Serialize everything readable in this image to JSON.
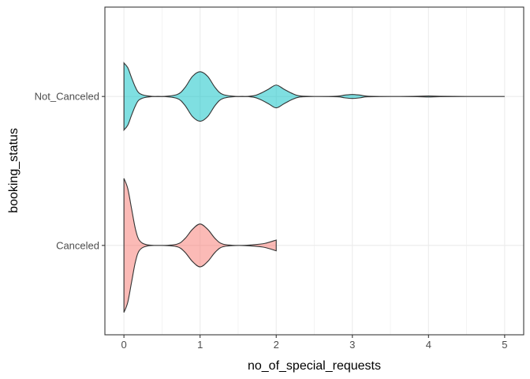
{
  "chart_data": {
    "type": "violin",
    "orientation": "horizontal",
    "xlabel": "no_of_special_requests",
    "ylabel": "booking_status",
    "xlim": [
      -0.25,
      5.25
    ],
    "x_ticks": [
      0,
      1,
      2,
      3,
      4,
      5
    ],
    "x_tick_labels": [
      "0",
      "1",
      "2",
      "3",
      "4",
      "5"
    ],
    "categories": [
      "Canceled",
      "Not_Canceled"
    ],
    "grid": true,
    "legend": "none",
    "series": [
      {
        "category": "Canceled",
        "color": "#F8766D",
        "x_range": [
          0,
          2
        ],
        "density": [
          [
            0,
            1.0
          ],
          [
            0.05,
            0.85
          ],
          [
            0.1,
            0.55
          ],
          [
            0.15,
            0.25
          ],
          [
            0.2,
            0.08
          ],
          [
            0.3,
            0.01
          ],
          [
            0.5,
            0.0
          ],
          [
            0.7,
            0.02
          ],
          [
            0.8,
            0.1
          ],
          [
            0.9,
            0.24
          ],
          [
            1.0,
            0.32
          ],
          [
            1.1,
            0.24
          ],
          [
            1.2,
            0.1
          ],
          [
            1.3,
            0.02
          ],
          [
            1.5,
            0.0
          ],
          [
            1.7,
            0.01
          ],
          [
            1.85,
            0.03
          ],
          [
            2.0,
            0.08
          ]
        ]
      },
      {
        "category": "Not_Canceled",
        "color": "#00BFC4",
        "x_range": [
          0,
          5
        ],
        "density": [
          [
            0,
            0.5
          ],
          [
            0.05,
            0.43
          ],
          [
            0.1,
            0.28
          ],
          [
            0.15,
            0.14
          ],
          [
            0.2,
            0.05
          ],
          [
            0.3,
            0.01
          ],
          [
            0.5,
            0.0
          ],
          [
            0.7,
            0.03
          ],
          [
            0.8,
            0.13
          ],
          [
            0.9,
            0.3
          ],
          [
            1.0,
            0.37
          ],
          [
            1.1,
            0.3
          ],
          [
            1.2,
            0.13
          ],
          [
            1.3,
            0.03
          ],
          [
            1.5,
            0.0
          ],
          [
            1.7,
            0.01
          ],
          [
            1.8,
            0.05
          ],
          [
            1.9,
            0.11
          ],
          [
            2.0,
            0.17
          ],
          [
            2.1,
            0.11
          ],
          [
            2.2,
            0.05
          ],
          [
            2.3,
            0.01
          ],
          [
            2.5,
            0.0
          ],
          [
            2.8,
            0.005
          ],
          [
            2.9,
            0.02
          ],
          [
            3.0,
            0.03
          ],
          [
            3.1,
            0.02
          ],
          [
            3.2,
            0.005
          ],
          [
            3.5,
            0.0
          ],
          [
            3.85,
            0.003
          ],
          [
            4.0,
            0.008
          ],
          [
            4.15,
            0.003
          ],
          [
            4.5,
            0.0
          ],
          [
            5.0,
            0.0
          ]
        ]
      }
    ]
  }
}
